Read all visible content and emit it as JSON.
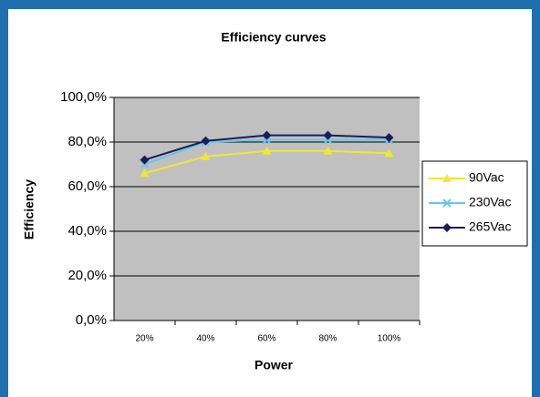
{
  "chart_data": {
    "type": "line",
    "title": "Efficiency curves",
    "x_label": "Power",
    "y_label": "Efficiency",
    "categories": [
      "20%",
      "40%",
      "60%",
      "80%",
      "100%"
    ],
    "series": [
      {
        "name": "90Vac",
        "color": "#f0e830",
        "marker": "triangle",
        "values": [
          66,
          73.5,
          76,
          76,
          75
        ]
      },
      {
        "name": "230Vac",
        "color": "#66c8e8",
        "marker": "x",
        "values": [
          70,
          80,
          81,
          81,
          81
        ]
      },
      {
        "name": "265Vac",
        "color": "#1c1c5c",
        "marker": "diamond",
        "values": [
          72,
          80.5,
          83,
          83,
          82
        ]
      }
    ],
    "ylim": [
      0,
      100
    ],
    "yticks": [
      {
        "value": 0,
        "label": "0,0%"
      },
      {
        "value": 20,
        "label": "20,0%"
      },
      {
        "value": 40,
        "label": "40,0%"
      },
      {
        "value": 60,
        "label": "60,0%"
      },
      {
        "value": 80,
        "label": "80,0%"
      },
      {
        "value": 100,
        "label": "100,0%"
      }
    ],
    "grid": true,
    "legend": "right"
  }
}
